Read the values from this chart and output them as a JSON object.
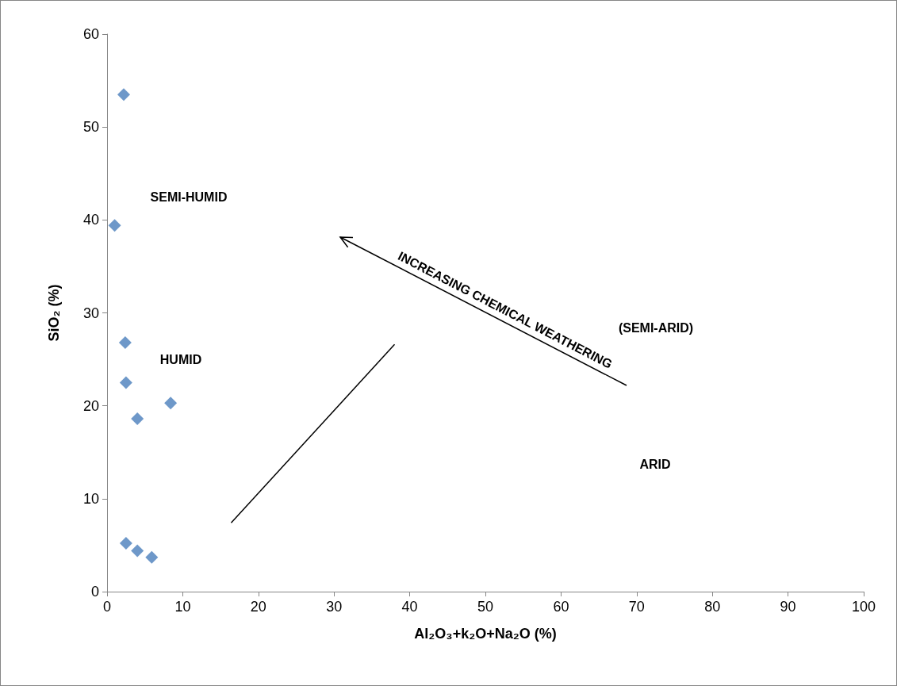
{
  "chart_data": {
    "type": "scatter",
    "xlabel": "Al₂O₃+k₂O+Na₂O (%)",
    "ylabel": "SiO₂ (%)",
    "xlim": [
      0,
      100
    ],
    "xticks": [
      0,
      10,
      20,
      30,
      40,
      50,
      60,
      70,
      80,
      90,
      100
    ],
    "ylim": [
      0,
      60
    ],
    "yticks": [
      0,
      10,
      20,
      30,
      40,
      50,
      60
    ],
    "grid": false,
    "marker": "diamond",
    "series": [
      {
        "color": "#4a7ebb",
        "x": [
          2.2,
          1.0,
          2.4,
          2.5,
          4.0,
          8.4,
          2.5,
          4.0,
          5.9
        ],
        "values": [
          53.5,
          39.4,
          26.8,
          22.5,
          18.6,
          20.3,
          5.2,
          4.4,
          3.7
        ]
      },
      {
        "type": "line",
        "color": "#000000",
        "marker": "none",
        "x": [
          16.4,
          38.0
        ],
        "values": [
          7.4,
          26.6
        ]
      }
    ],
    "annotations": [
      "SEMI-HUMID",
      "HUMID",
      "(SEMI-ARID)",
      "ARID",
      "INCREASING CHEMICAL WEATHERING"
    ]
  }
}
